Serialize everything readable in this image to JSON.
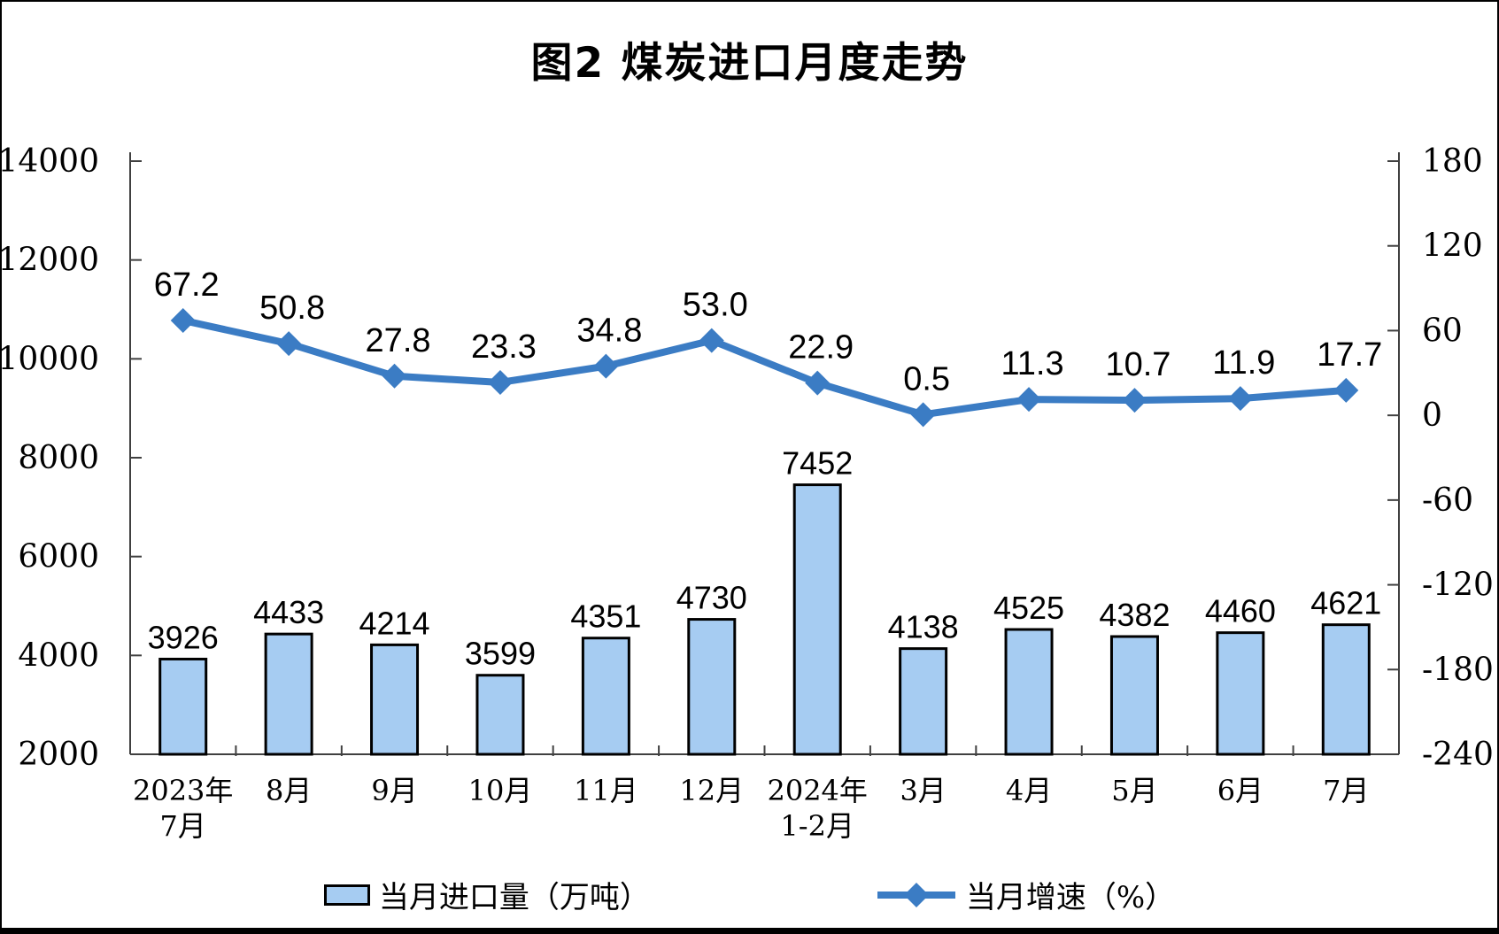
{
  "title": "图2 煤炭进口月度走势",
  "legend": {
    "bar_label": "当月进口量（万吨）",
    "line_label": "当月增速（%）"
  },
  "chart_data": {
    "type": "bar+line combo",
    "title": "图2 煤炭进口月度走势",
    "categories": [
      [
        "2023年",
        "7月"
      ],
      [
        "8月"
      ],
      [
        "9月"
      ],
      [
        "10月"
      ],
      [
        "11月"
      ],
      [
        "12月"
      ],
      [
        "2024年",
        "1-2月"
      ],
      [
        "3月"
      ],
      [
        "4月"
      ],
      [
        "5月"
      ],
      [
        "6月"
      ],
      [
        "7月"
      ]
    ],
    "series": [
      {
        "name": "当月进口量（万吨）",
        "type": "bar",
        "axis": "left",
        "values": [
          3926,
          4433,
          4214,
          3599,
          4351,
          4730,
          7452,
          4138,
          4525,
          4382,
          4460,
          4621
        ],
        "labels": [
          "3926",
          "4433",
          "4214",
          "3599",
          "4351",
          "4730",
          "7452",
          "4138",
          "4525",
          "4382",
          "4460",
          "4621"
        ]
      },
      {
        "name": "当月增速（%）",
        "type": "line",
        "axis": "right",
        "values": [
          67.2,
          50.8,
          27.8,
          23.3,
          34.8,
          53.0,
          22.9,
          0.5,
          11.3,
          10.7,
          11.9,
          17.7
        ],
        "labels": [
          "67.2",
          "50.8",
          "27.8",
          "23.3",
          "34.8",
          "53.0",
          "22.9",
          "0.5",
          "11.3",
          "10.7",
          "11.9",
          "17.7"
        ]
      }
    ],
    "left_axis": {
      "min": 2000,
      "max": 14000,
      "step": 2000,
      "ticks": [
        2000,
        4000,
        6000,
        8000,
        10000,
        12000,
        14000
      ]
    },
    "right_axis": {
      "min": -240,
      "max": 180,
      "step": 60,
      "ticks": [
        -240,
        -180,
        -120,
        -60,
        0,
        60,
        120,
        180
      ]
    },
    "grid": false,
    "legend_position": "bottom",
    "colors": {
      "bar_fill": "#A6CCF2",
      "bar_border": "#000000",
      "line": "#3B7CC4",
      "axis": "#404040",
      "text": "#000000"
    }
  }
}
